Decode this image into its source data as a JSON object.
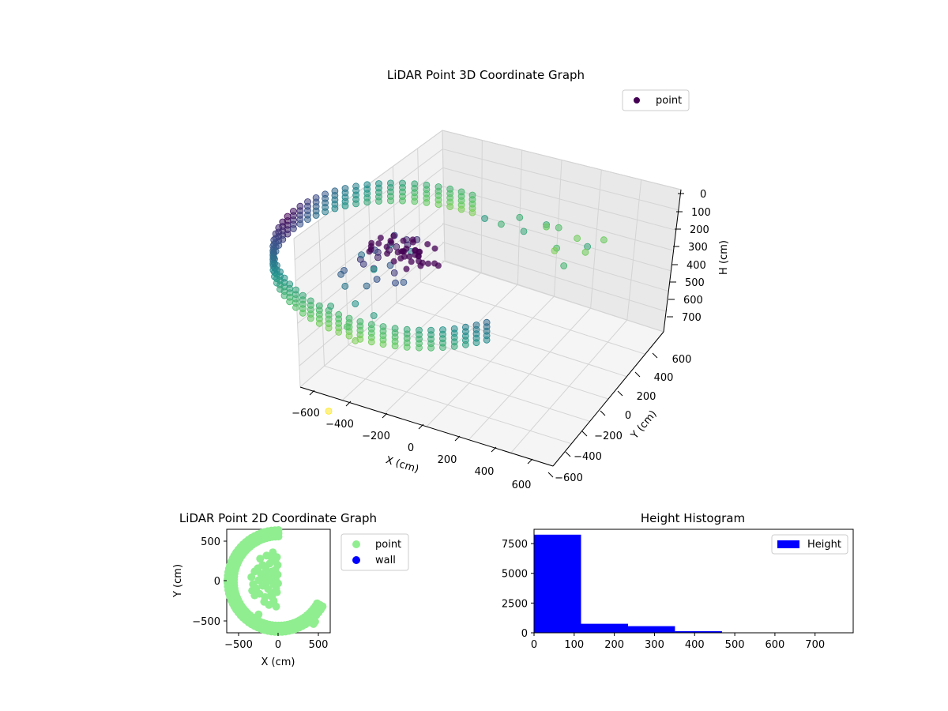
{
  "chart_data": [
    {
      "type": "scatter3d",
      "title": "LiDAR Point 3D Coordinate Graph",
      "xlabel": "X (cm)",
      "ylabel": "Y (cm)",
      "zlabel": "H (cm)",
      "xticks": [
        "−600",
        "−400",
        "−200",
        "0",
        "200",
        "400",
        "600"
      ],
      "yticks": [
        "−600",
        "−400",
        "−200",
        "0",
        "200",
        "400",
        "600"
      ],
      "zticks": [
        "0",
        "100",
        "200",
        "300",
        "400",
        "500",
        "600",
        "700"
      ],
      "xlim": [
        -650,
        650
      ],
      "ylim": [
        -650,
        650
      ],
      "zlim": [
        780,
        0
      ],
      "legend": {
        "label": "point",
        "placement": "top-right",
        "color": "#440154"
      },
      "colormap": "viridis",
      "series": [
        {
          "name": "point",
          "wall_radius_cm": 600,
          "wall_angle_deg": [
            90,
            330
          ],
          "wall_height_cm": [
            0,
            120
          ],
          "points": [
            [
              -80,
              120,
              5
            ],
            [
              -60,
              90,
              10
            ],
            [
              -100,
              60,
              20
            ],
            [
              -40,
              140,
              0
            ],
            [
              -120,
              30,
              30
            ],
            [
              -150,
              -20,
              60
            ],
            [
              -180,
              40,
              80
            ],
            [
              -200,
              -60,
              100
            ],
            [
              -130,
              -100,
              70
            ],
            [
              -90,
              -150,
              90
            ],
            [
              -220,
              90,
              120
            ],
            [
              -160,
              160,
              40
            ],
            [
              -250,
              10,
              140
            ],
            [
              -60,
              -40,
              110
            ],
            [
              -30,
              -90,
              130
            ],
            [
              -280,
              -90,
              160
            ],
            [
              -200,
              200,
              150
            ],
            [
              -110,
              220,
              170
            ],
            [
              -240,
              -160,
              200
            ],
            [
              -170,
              -200,
              260
            ],
            [
              -300,
              120,
              210
            ],
            [
              -320,
              -40,
              240
            ],
            [
              -140,
              80,
              180
            ],
            [
              -210,
              -10,
              290
            ],
            [
              -260,
              160,
              320
            ],
            [
              -80,
              -200,
              300
            ],
            [
              -300,
              -180,
              350
            ],
            [
              -50,
              30,
              220
            ],
            [
              -180,
              -260,
              380
            ],
            [
              -120,
              -300,
              420
            ],
            [
              120,
              480,
              20
            ],
            [
              180,
              520,
              60
            ],
            [
              250,
              560,
              10
            ],
            [
              300,
              500,
              40
            ],
            [
              380,
              560,
              0
            ],
            [
              420,
              600,
              30
            ],
            [
              500,
              620,
              80
            ],
            [
              560,
              580,
              120
            ],
            [
              620,
              640,
              50
            ],
            [
              450,
              520,
              100
            ],
            [
              520,
              450,
              140
            ],
            [
              600,
              520,
              20
            ],
            [
              -120,
              -560,
              720
            ],
            [
              420,
              560,
              160
            ],
            [
              350,
              620,
              70
            ]
          ]
        }
      ]
    },
    {
      "type": "scatter",
      "title": "LiDAR Point 2D Coordinate Graph",
      "xlabel": "X (cm)",
      "ylabel": "Y (cm)",
      "xticks": [
        "−500",
        "0",
        "500"
      ],
      "yticks": [
        "−500",
        "0",
        "500"
      ],
      "xlim": [
        -650,
        650
      ],
      "ylim": [
        -650,
        650
      ],
      "legend": {
        "placement": "outside-right",
        "entries": [
          {
            "label": "point",
            "color": "#90ee90"
          },
          {
            "label": "wall",
            "color": "#0000ff"
          }
        ]
      },
      "series": [
        {
          "name": "point",
          "color": "#90ee90",
          "wall_radius_cm": 600,
          "wall_angle_deg": [
            90,
            330
          ],
          "points": [
            [
              -80,
              120
            ],
            [
              -60,
              90
            ],
            [
              -100,
              60
            ],
            [
              -40,
              140
            ],
            [
              -120,
              30
            ],
            [
              -150,
              -20
            ],
            [
              -180,
              40
            ],
            [
              -200,
              -60
            ],
            [
              -130,
              -100
            ],
            [
              -90,
              -150
            ],
            [
              -220,
              90
            ],
            [
              -160,
              160
            ],
            [
              -250,
              10
            ],
            [
              -60,
              -40
            ],
            [
              -30,
              -90
            ],
            [
              -280,
              -90
            ],
            [
              -200,
              200
            ],
            [
              -110,
              220
            ],
            [
              -240,
              -160
            ],
            [
              -170,
              -200
            ],
            [
              -300,
              120
            ],
            [
              -320,
              -40
            ],
            [
              -140,
              80
            ],
            [
              -210,
              -10
            ],
            [
              -260,
              160
            ],
            [
              -80,
              -200
            ],
            [
              -300,
              -180
            ],
            [
              -50,
              30
            ],
            [
              -180,
              -260
            ],
            [
              -120,
              -300
            ],
            [
              -20,
              300
            ],
            [
              -40,
              250
            ],
            [
              -10,
              200
            ],
            [
              -60,
              -250
            ],
            [
              -30,
              -320
            ],
            [
              -90,
              300
            ],
            [
              -20,
              -140
            ],
            [
              -10,
              80
            ],
            [
              -5,
              -30
            ],
            [
              -35,
              20
            ],
            [
              -150,
              320
            ],
            [
              -230,
              280
            ],
            [
              -340,
              50
            ],
            [
              -330,
              -120
            ],
            [
              -70,
              360
            ],
            [
              380,
              -520
            ],
            [
              420,
              -500
            ],
            [
              440,
              -540
            ],
            [
              460,
              -510
            ],
            [
              -250,
              -420
            ]
          ]
        },
        {
          "name": "wall",
          "color": "#0000ff",
          "points": []
        }
      ]
    },
    {
      "type": "bar",
      "title": "Height Histogram",
      "xlabel": "",
      "ylabel": "",
      "xticks": [
        "0",
        "100",
        "200",
        "300",
        "400",
        "500",
        "600",
        "700"
      ],
      "yticks": [
        "0",
        "2500",
        "5000",
        "7500"
      ],
      "xlim": [
        0,
        795
      ],
      "ylim": [
        0,
        8700
      ],
      "legend": {
        "label": "Height",
        "placement": "top-right",
        "color": "#0000ff"
      },
      "bins": [
        {
          "x0": 0,
          "x1": 117,
          "count": 8250
        },
        {
          "x0": 117,
          "x1": 234,
          "count": 760
        },
        {
          "x0": 234,
          "x1": 351,
          "count": 560
        },
        {
          "x0": 351,
          "x1": 468,
          "count": 140
        },
        {
          "x0": 468,
          "x1": 585,
          "count": 20
        },
        {
          "x0": 585,
          "x1": 702,
          "count": 10
        },
        {
          "x0": 702,
          "x1": 795,
          "count": 5
        }
      ],
      "color": "#0000ff"
    }
  ]
}
